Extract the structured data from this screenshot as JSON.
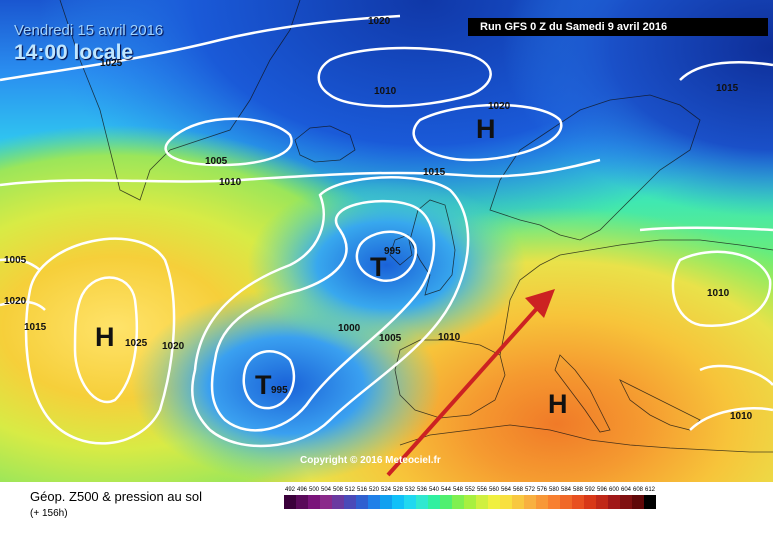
{
  "header": {
    "date": "Vendredi 15 avril 2016",
    "time": "14:00 locale",
    "run": "Run GFS 0 Z du Samedi 9 avril 2016"
  },
  "map": {
    "isobar_labels": [
      "1020",
      "1025",
      "1010",
      "1020",
      "1015",
      "1005",
      "1010",
      "1015",
      "995",
      "1005",
      "1020",
      "1015",
      "1025",
      "1020",
      "1000",
      "1005",
      "1010",
      "1010",
      "995",
      "1010"
    ],
    "centers": [
      "H",
      "T",
      "H",
      "T",
      "H"
    ],
    "copyright": "Copyright © 2016 Meteociel.fr"
  },
  "legend": {
    "title": "Géop. Z500 & pression au sol",
    "subtitle": "(+ 156h)",
    "scale_labels": [
      "492",
      "496",
      "500",
      "504",
      "508",
      "512",
      "516",
      "520",
      "524",
      "528",
      "532",
      "536",
      "540",
      "544",
      "548",
      "552",
      "556",
      "560",
      "564",
      "568",
      "572",
      "576",
      "580",
      "584",
      "588",
      "592",
      "596",
      "600",
      "604",
      "608",
      "612"
    ],
    "scale_colors": [
      "#3a003a",
      "#5a0a5a",
      "#7a147a",
      "#8a2a8a",
      "#6a3aa0",
      "#4a4ab8",
      "#3060d0",
      "#2080e8",
      "#10a0f0",
      "#10c0f8",
      "#20d8f0",
      "#30e8d0",
      "#30f0a0",
      "#50f070",
      "#80f050",
      "#a8f040",
      "#d0f040",
      "#f0f040",
      "#f8e040",
      "#f8c840",
      "#f8b040",
      "#f89838",
      "#f88030",
      "#f06828",
      "#e85020",
      "#d83818",
      "#c02818",
      "#a01818",
      "#801010",
      "#600808",
      "#000000"
    ],
    "colors": {
      "arrow": "#cc2222",
      "isobar": "#ffffff",
      "run_box": "#000000"
    }
  }
}
